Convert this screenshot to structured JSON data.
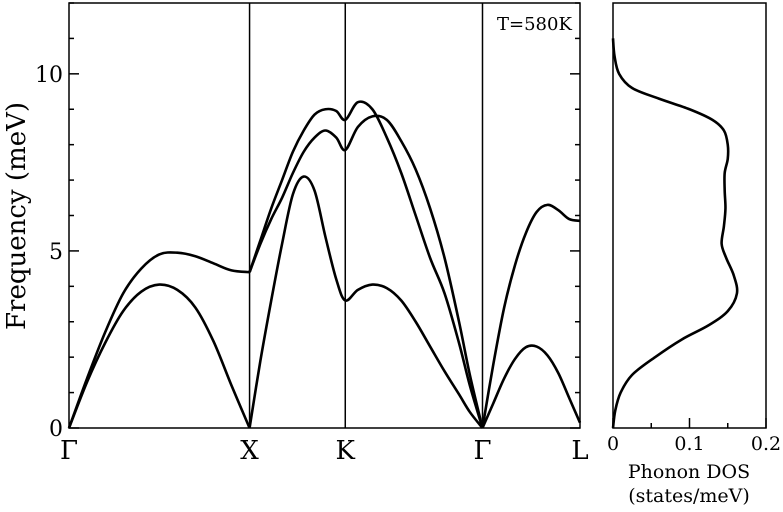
{
  "chart_data": [
    {
      "type": "line",
      "ylabel": "Frequency (meV)",
      "annotation": "T=580K",
      "ylim": [
        0,
        12
      ],
      "yticks": [
        "0",
        "5",
        "10"
      ],
      "k_points": [
        "Γ",
        "X",
        "K",
        "Γ",
        "L"
      ],
      "k_positions": [
        0,
        1,
        1.53,
        2.29,
        2.83
      ],
      "series": [
        {
          "x": [
            0,
            0.1,
            0.2,
            0.3,
            0.4,
            0.5,
            0.6,
            0.7,
            0.8,
            0.9,
            1.0
          ],
          "values": [
            0,
            1.3,
            2.4,
            3.3,
            3.85,
            4.05,
            3.9,
            3.4,
            2.45,
            1.2,
            0
          ]
        },
        {
          "x": [
            0,
            0.1,
            0.2,
            0.3,
            0.4,
            0.5,
            0.6,
            0.7,
            0.8,
            0.9,
            1.0
          ],
          "values": [
            0,
            1.4,
            2.7,
            3.8,
            4.5,
            4.9,
            4.95,
            4.85,
            4.65,
            4.45,
            4.4
          ]
        },
        {
          "x": [
            1.0,
            1.06,
            1.12,
            1.18,
            1.24,
            1.3,
            1.36,
            1.42,
            1.48,
            1.53,
            1.6,
            1.68,
            1.76,
            1.84,
            1.92,
            2.0,
            2.08,
            2.16,
            2.22,
            2.29
          ],
          "values": [
            0,
            1.9,
            3.6,
            5.2,
            6.6,
            7.1,
            6.7,
            5.4,
            4.2,
            3.6,
            3.9,
            4.05,
            3.95,
            3.6,
            3.0,
            2.3,
            1.6,
            0.95,
            0.45,
            0
          ]
        },
        {
          "x": [
            1.0,
            1.06,
            1.12,
            1.18,
            1.24,
            1.3,
            1.36,
            1.42,
            1.48,
            1.53,
            1.6,
            1.68,
            1.76,
            1.84,
            1.92,
            2.0,
            2.08,
            2.16,
            2.22,
            2.29
          ],
          "values": [
            4.4,
            5.2,
            5.9,
            6.5,
            7.2,
            7.8,
            8.2,
            8.4,
            8.2,
            7.85,
            8.5,
            8.8,
            8.7,
            8.1,
            7.3,
            6.2,
            4.8,
            3.0,
            1.5,
            0
          ]
        },
        {
          "x": [
            1.0,
            1.06,
            1.12,
            1.18,
            1.24,
            1.3,
            1.36,
            1.42,
            1.48,
            1.53,
            1.6,
            1.68,
            1.76,
            1.84,
            1.92,
            2.0,
            2.08,
            2.16,
            2.22,
            2.29
          ],
          "values": [
            4.4,
            5.3,
            6.2,
            7.0,
            7.8,
            8.4,
            8.85,
            9.0,
            8.95,
            8.7,
            9.2,
            9.0,
            8.2,
            7.2,
            6.0,
            4.8,
            3.8,
            2.4,
            1.2,
            0
          ]
        },
        {
          "x": [
            2.29,
            2.35,
            2.41,
            2.47,
            2.53,
            2.59,
            2.65,
            2.71,
            2.77,
            2.83
          ],
          "values": [
            0,
            0.7,
            1.4,
            1.95,
            2.28,
            2.3,
            2.05,
            1.55,
            0.85,
            0.15
          ]
        },
        {
          "x": [
            2.29,
            2.35,
            2.41,
            2.47,
            2.53,
            2.59,
            2.65,
            2.71,
            2.77,
            2.83
          ],
          "values": [
            0,
            1.8,
            3.4,
            4.6,
            5.5,
            6.1,
            6.3,
            6.15,
            5.9,
            5.85
          ]
        }
      ]
    },
    {
      "type": "line",
      "xlabel_line1": "Phonon DOS",
      "xlabel_line2": "(states/meV)",
      "xlim": [
        0,
        0.2
      ],
      "xticks": [
        "0",
        "0.1",
        "0.2"
      ],
      "ylim": [
        0,
        12
      ],
      "series": [
        {
          "x": [
            0,
            0.003,
            0.01,
            0.025,
            0.055,
            0.09,
            0.125,
            0.15,
            0.162,
            0.158,
            0.148,
            0.142,
            0.145,
            0.147,
            0.146,
            0.146,
            0.15,
            0.15,
            0.145,
            0.13,
            0.1,
            0.06,
            0.025,
            0.008,
            0.002,
            0.0
          ],
          "values": [
            0,
            0.5,
            1.0,
            1.5,
            2.0,
            2.5,
            2.9,
            3.3,
            3.8,
            4.3,
            4.8,
            5.2,
            5.7,
            6.2,
            6.7,
            7.2,
            7.6,
            8.0,
            8.4,
            8.7,
            9.0,
            9.3,
            9.6,
            10.0,
            10.5,
            11.0
          ]
        }
      ]
    }
  ]
}
